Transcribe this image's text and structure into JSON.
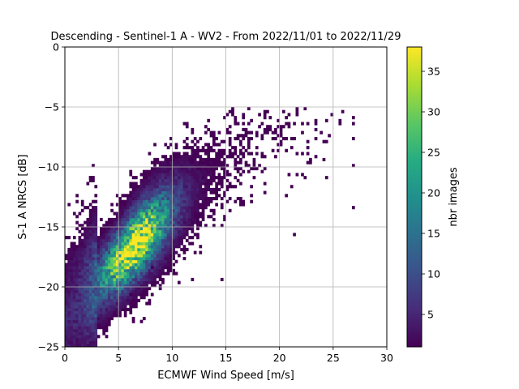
{
  "chart_data": {
    "type": "heatmap",
    "title": "Descending - Sentinel-1 A - WV2 - From 2022/11/01 to 2022/11/29",
    "xlabel": "ECMWF Wind Speed [m/s]",
    "ylabel": "S-1 A NRCS [dB]",
    "xlim": [
      0,
      30
    ],
    "ylim": [
      -25,
      0
    ],
    "xticks": [
      0,
      5,
      10,
      15,
      20,
      25,
      30
    ],
    "yticks": [
      -25,
      -20,
      -15,
      -10,
      -5,
      0
    ],
    "grid": true,
    "colormap": "viridis",
    "colorbar": {
      "label": "nbr images",
      "range": [
        1,
        38
      ],
      "ticks": [
        5,
        10,
        15,
        20,
        25,
        30,
        35
      ]
    },
    "bins": {
      "x_width": 0.25,
      "y_width": 0.25
    },
    "density_model": {
      "description": "2D histogram of image counts; the densest cells lie along a band from about (1 m/s, -20 dB) to (18 m/s, -7 dB)",
      "ridge": [
        [
          0.5,
          -21.5
        ],
        [
          3,
          -19.5
        ],
        [
          5,
          -18.0
        ],
        [
          6.5,
          -16.5
        ],
        [
          8,
          -15.2
        ],
        [
          10,
          -13.5
        ],
        [
          12,
          -11.8
        ],
        [
          14,
          -10.2
        ],
        [
          16,
          -8.8
        ],
        [
          18,
          -7.5
        ],
        [
          20,
          -6.5
        ],
        [
          22,
          -6.2
        ]
      ],
      "peak_count": 38,
      "peak_location": [
        6.5,
        -16.5
      ]
    },
    "outliers": [
      [
        2.4,
        -10.8
      ],
      [
        6.0,
        -10.5
      ],
      [
        1.2,
        -14.2
      ],
      [
        22.2,
        -6.3
      ],
      [
        22.6,
        -6.4
      ],
      [
        24.4,
        -6.2
      ],
      [
        26.8,
        -6.5
      ],
      [
        24.1,
        -7.8
      ],
      [
        20.0,
        -6.6
      ],
      [
        20.1,
        -7.3
      ],
      [
        6.3,
        -22.8
      ],
      [
        7.4,
        -22.6
      ],
      [
        11.8,
        -19.3
      ],
      [
        6.0,
        -20.6
      ],
      [
        8.2,
        -18.4
      ]
    ]
  }
}
